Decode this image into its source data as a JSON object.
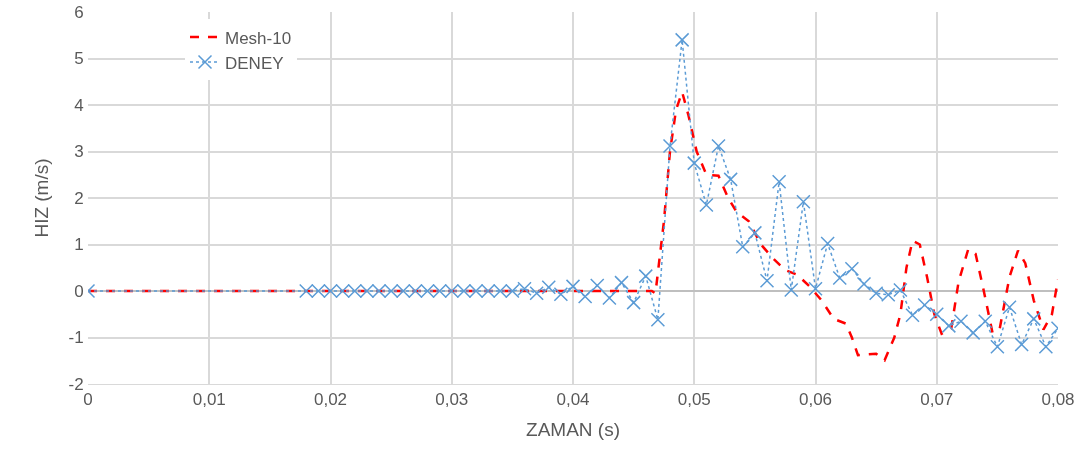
{
  "chart_data": {
    "type": "line",
    "xlabel": "ZAMAN (s)",
    "ylabel": "HIZ (m/s)",
    "xlim": [
      0,
      0.08
    ],
    "xticks": [
      {
        "value": 0,
        "label": "0"
      },
      {
        "value": 0.01,
        "label": "0,01"
      },
      {
        "value": 0.02,
        "label": "0,02"
      },
      {
        "value": 0.03,
        "label": "0,03"
      },
      {
        "value": 0.04,
        "label": "0,04"
      },
      {
        "value": 0.05,
        "label": "0,05"
      },
      {
        "value": 0.06,
        "label": "0,06"
      },
      {
        "value": 0.07,
        "label": "0,07"
      },
      {
        "value": 0.08,
        "label": "0,08"
      }
    ],
    "ylim": [
      -2,
      6
    ],
    "yticks": [
      -2,
      -1,
      0,
      1,
      2,
      3,
      4,
      5,
      6
    ],
    "grid": true,
    "legend": "top left",
    "series": [
      {
        "name": "Mesh-10",
        "color": "#ff0000",
        "line_style": "dashed",
        "marker": "none",
        "x": [
          0,
          0.02,
          0.04,
          0.0465,
          0.0468,
          0.0475,
          0.048,
          0.0485,
          0.049,
          0.0495,
          0.0502,
          0.051,
          0.052,
          0.0528,
          0.0535,
          0.0545,
          0.0555,
          0.0565,
          0.0575,
          0.0585,
          0.0595,
          0.0605,
          0.0615,
          0.0625,
          0.063,
          0.0635,
          0.065,
          0.0657,
          0.0665,
          0.067,
          0.0675,
          0.068,
          0.0686,
          0.0692,
          0.0698,
          0.0704,
          0.0712,
          0.0718,
          0.0726,
          0.0732,
          0.0738,
          0.0746,
          0.0752,
          0.076,
          0.0767,
          0.0773,
          0.078,
          0.0788,
          0.0795,
          0.08
        ],
        "values": [
          0,
          0,
          0,
          0,
          -0.05,
          1.5,
          3.0,
          3.9,
          4.28,
          3.8,
          3.0,
          2.5,
          2.48,
          2.0,
          1.7,
          1.5,
          1.0,
          0.7,
          0.45,
          0.35,
          0.1,
          -0.2,
          -0.6,
          -0.7,
          -1.0,
          -1.38,
          -1.35,
          -1.49,
          -1.0,
          -0.5,
          0.5,
          1.08,
          1.0,
          0.3,
          -0.5,
          -0.92,
          -0.8,
          0.2,
          0.9,
          0.8,
          0.1,
          -0.9,
          -0.8,
          0.3,
          0.87,
          0.6,
          -0.2,
          -0.83,
          -0.5,
          0.25
        ]
      },
      {
        "name": "DENEY",
        "color": "#5b9bd5",
        "line_style": "dotted",
        "marker": "cross",
        "x": [
          0,
          0.018,
          0.019,
          0.02,
          0.021,
          0.022,
          0.023,
          0.024,
          0.025,
          0.026,
          0.027,
          0.028,
          0.029,
          0.03,
          0.031,
          0.032,
          0.033,
          0.034,
          0.035,
          0.036,
          0.037,
          0.038,
          0.039,
          0.04,
          0.041,
          0.042,
          0.043,
          0.044,
          0.045,
          0.046,
          0.047,
          0.048,
          0.049,
          0.05,
          0.051,
          0.052,
          0.053,
          0.054,
          0.055,
          0.056,
          0.057,
          0.058,
          0.059,
          0.06,
          0.061,
          0.062,
          0.063,
          0.064,
          0.065,
          0.066,
          0.067,
          0.068,
          0.069,
          0.07,
          0.071,
          0.072,
          0.073,
          0.074,
          0.075,
          0.076,
          0.077,
          0.078,
          0.079,
          0.08
        ],
        "values": [
          0,
          0,
          0,
          0,
          0,
          0,
          0,
          0,
          0,
          0,
          0,
          0,
          0,
          0,
          0,
          0,
          0,
          0,
          0,
          0.05,
          -0.05,
          0.08,
          -0.07,
          0.1,
          -0.12,
          0.12,
          -0.15,
          0.18,
          -0.25,
          0.32,
          -0.62,
          3.12,
          5.4,
          2.75,
          1.85,
          3.12,
          2.4,
          0.95,
          1.25,
          0.22,
          2.35,
          0.02,
          1.92,
          0.05,
          1.02,
          0.28,
          0.48,
          0.15,
          -0.05,
          -0.08,
          0.02,
          -0.52,
          -0.3,
          -0.5,
          -0.75,
          -0.65,
          -0.9,
          -0.65,
          -1.2,
          -0.35,
          -1.15,
          -0.6,
          -1.2,
          -0.8
        ]
      }
    ]
  }
}
